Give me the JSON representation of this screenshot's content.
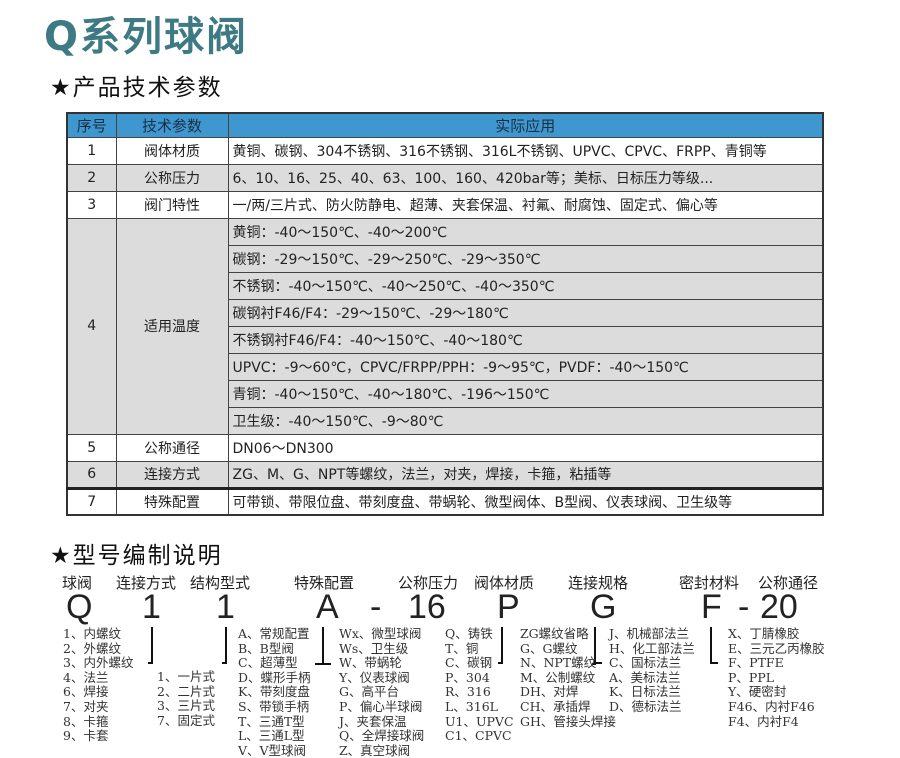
{
  "title": "Q系列球阀",
  "section1": "★产品技术参数",
  "section2": "★型号编制说明",
  "table": {
    "headers": [
      "序号",
      "技术参数",
      "实际应用"
    ],
    "rows": [
      {
        "no": "1",
        "param": "阀体材质",
        "value": "黄铜、碳钢、304不锈钢、316不锈钢、316L不锈钢、UPVC、CPVC、FRPP、青铜等"
      },
      {
        "no": "2",
        "param": "公称压力",
        "value": "6、10、16、25、40、63、100、160、420bar等；美标、日标压力等级..."
      },
      {
        "no": "3",
        "param": "阀门特性",
        "value": "一/两/三片式、防火防静电、超薄、夹套保温、衬氟、耐腐蚀、固定式、偏心等"
      },
      {
        "no": "4",
        "param": "适用温度",
        "values": [
          "黄铜：-40～150℃、-40～200℃",
          "碳钢：-29～150℃、-29～250℃、-29～350℃",
          "不锈钢：-40～150℃、-40～250℃、-40～350℃",
          "碳钢衬F46/F4：-29～150℃、-29～180℃",
          "不锈钢衬F46/F4：-40～150℃、-40～180℃",
          "UPVC：-9～60℃，CPVC/FRPP/PPH：-9～95℃，PVDF：-40～150℃",
          "青铜：-40～150℃、-40～180℃、-196～150℃",
          "卫生级：-40～150℃、-9～80℃"
        ]
      },
      {
        "no": "5",
        "param": "公称通径",
        "value": "DN06～DN300"
      },
      {
        "no": "6",
        "param": "连接方式",
        "value": "ZG、M、G、NPT等螺纹，法兰，对夹，焊接，卡箍，粘插等"
      },
      {
        "no": "7",
        "param": "特殊配置",
        "value": "可带锁、带限位盘、带刻度盘、带蜗轮、微型阀体、B型阀、仪表球阀、卫生级等"
      }
    ]
  },
  "code": {
    "labels": [
      "球阀",
      "连接方式",
      "结构型式",
      "特殊配置",
      "公称压力",
      "阀体材质",
      "连接规格",
      "密封材料",
      "公称通径"
    ],
    "letters": [
      "Q",
      "1",
      "1",
      "A",
      "-",
      "16",
      "P",
      "G",
      "F",
      "-",
      "20"
    ],
    "lists": {
      "connection": [
        "1、内螺纹",
        "2、外螺纹",
        "3、内外螺纹",
        "4、法兰",
        "6、焊接",
        "7、对夹",
        "8、卡箍",
        "9、卡套"
      ],
      "structure": [
        "1、一片式",
        "2、二片式",
        "3、三片式",
        "7、固定式"
      ],
      "special_a": [
        "A、常规配置",
        "B、B型阀",
        "C、超薄型",
        "D、蝶形手柄",
        "K、带刻度盘",
        "S、带锁手柄",
        "T、三通T型",
        "L、三通L型",
        "V、V型球阀"
      ],
      "special_b": [
        "Wx、微型球阀",
        "Ws、卫生级",
        "W、带蜗轮",
        "Y、仪表球阀",
        "G、高平台",
        "P、偏心半球阀",
        "J、夹套保温",
        "Q、全焊接球阀",
        "Z、真空球阀"
      ],
      "material": [
        "Q、铸铁",
        "T、铜",
        "C、碳钢",
        "P、304",
        "R、316",
        "L、316L",
        "U1、UPVC",
        "C1、CPVC"
      ],
      "thread": [
        "ZG螺纹省略",
        "G、G螺纹",
        "N、NPT螺纹",
        "M、公制螺纹",
        "DH、对焊",
        "CH、承插焊",
        "GH、管接头焊接"
      ],
      "flange": [
        "J、机械部法兰",
        "H、化工部法兰",
        "C、国标法兰",
        "A、美标法兰",
        "K、日标法兰",
        "D、德标法兰"
      ],
      "seal": [
        "X、丁腈橡胶",
        "E、三元乙丙橡胶",
        "F、PTFE",
        "P、PPL",
        "Y、硬密封",
        "F46、内衬F46",
        "F4、内衬F4"
      ]
    }
  },
  "colors": {
    "title": "#3d7a84",
    "header": "#3f97d0",
    "row_gray": "#dcdcdc"
  }
}
